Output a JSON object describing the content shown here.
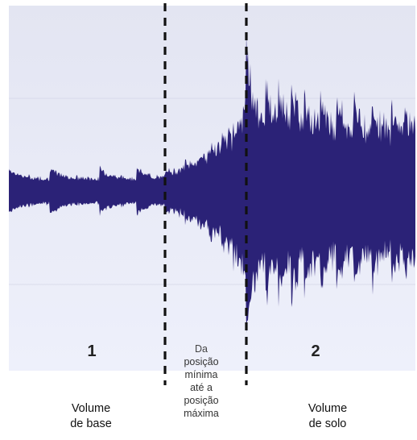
{
  "diagram": {
    "colors": {
      "waveform": "#2b2277",
      "panel_top": "#e3e5f2",
      "panel_bottom": "#eef0fb",
      "gridline": "#c9cce0",
      "divider": "#111111"
    },
    "regions": [
      {
        "number": "1",
        "caption_line1": "Volume",
        "caption_line2": "de base"
      },
      {
        "number": "2",
        "caption_line1": "Volume",
        "caption_line2": "de solo"
      }
    ],
    "transition": {
      "caption_lines": [
        "Da",
        "posição",
        "mínima",
        "até a",
        "posição",
        "máxima"
      ]
    }
  }
}
